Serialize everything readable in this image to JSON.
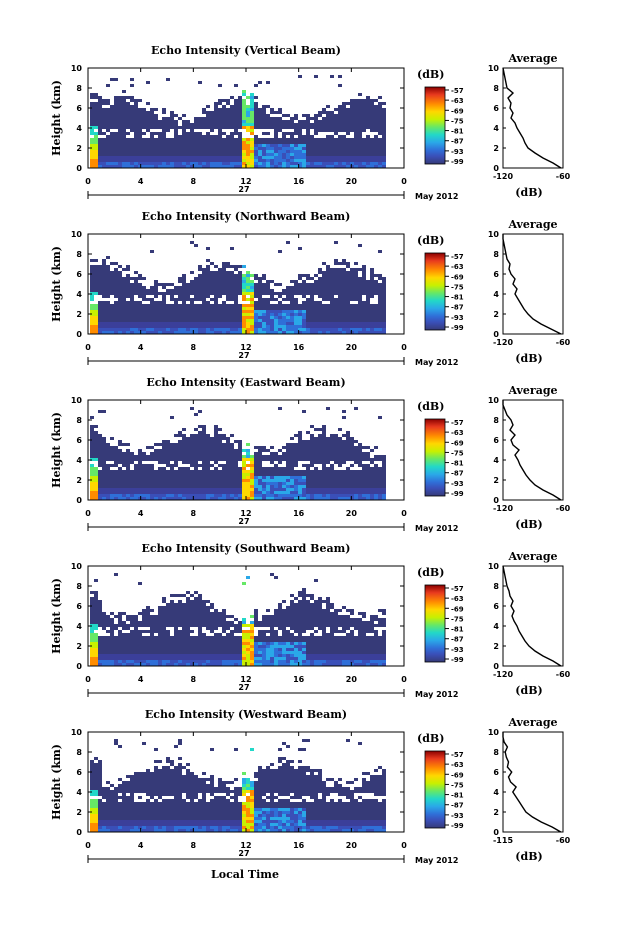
{
  "figure": {
    "xlabel": "Local Time",
    "date_label": "27",
    "month_label": "May 2012",
    "colorbar_unit": "(dB)",
    "colorbar_ticks": [
      "-57",
      "-63",
      "-69",
      "-75",
      "-81",
      "-87",
      "-93",
      "-99"
    ],
    "colorbar_colors": [
      "#8b0000",
      "#e83a1e",
      "#ff8c00",
      "#ffd700",
      "#c8f000",
      "#66e866",
      "#22d8c8",
      "#2aa8e8",
      "#2f6fd8",
      "#3a4fb8",
      "#3b3f9a",
      "#363a78"
    ],
    "avg_title": "Average",
    "avg_xlabel": "(dB)",
    "time_ticks": [
      "0",
      "4",
      "8",
      "12",
      "16",
      "20",
      "0"
    ],
    "height_ticks": [
      "0",
      "2",
      "4",
      "6",
      "8",
      "10"
    ],
    "ylabel": "Height (km)"
  },
  "chart_data": [
    {
      "type": "heatmap",
      "title": "Echo Intensity (Vertical Beam)",
      "xlabel": "",
      "ylabel": "Height (km)",
      "xlim": [
        0,
        24
      ],
      "ylim": [
        0,
        10
      ],
      "avg": {
        "title": "Average",
        "xlabel": "(dB)",
        "xticks": [
          "-120",
          "-60"
        ],
        "xlim": [
          -120,
          -60
        ],
        "profile": [
          [
            0,
            -62
          ],
          [
            0.5,
            -70
          ],
          [
            1,
            -80
          ],
          [
            1.5,
            -88
          ],
          [
            2,
            -95
          ],
          [
            2.5,
            -98
          ],
          [
            3,
            -100
          ],
          [
            3.5,
            -103
          ],
          [
            4,
            -106
          ],
          [
            4.5,
            -108
          ],
          [
            5,
            -112
          ],
          [
            5.5,
            -110
          ],
          [
            6,
            -113
          ],
          [
            6.5,
            -112
          ],
          [
            7,
            -115
          ],
          [
            7.5,
            -110
          ],
          [
            8,
            -116
          ],
          [
            8.5,
            -117
          ],
          [
            9,
            -118
          ],
          [
            9.5,
            -119
          ],
          [
            10,
            -120
          ]
        ]
      }
    },
    {
      "type": "heatmap",
      "title": "Echo Intensity (Northward Beam)",
      "xlabel": "",
      "ylabel": "Height (km)",
      "xlim": [
        0,
        24
      ],
      "ylim": [
        0,
        10
      ],
      "avg": {
        "title": "Average",
        "xlabel": "(dB)",
        "xticks": [
          "-120",
          "-60"
        ],
        "xlim": [
          -120,
          -60
        ],
        "profile": [
          [
            0,
            -62
          ],
          [
            0.5,
            -72
          ],
          [
            1,
            -82
          ],
          [
            1.5,
            -90
          ],
          [
            2,
            -95
          ],
          [
            2.5,
            -99
          ],
          [
            3,
            -102
          ],
          [
            3.5,
            -105
          ],
          [
            4,
            -108
          ],
          [
            4.5,
            -106
          ],
          [
            5,
            -110
          ],
          [
            5.5,
            -108
          ],
          [
            6,
            -112
          ],
          [
            6.5,
            -114
          ],
          [
            7,
            -113
          ],
          [
            7.5,
            -116
          ],
          [
            8,
            -117
          ],
          [
            8.5,
            -118
          ],
          [
            9,
            -119
          ],
          [
            9.5,
            -120
          ],
          [
            10,
            -120
          ]
        ]
      }
    },
    {
      "type": "heatmap",
      "title": "Echo Intensity (Eastward Beam)",
      "xlabel": "",
      "ylabel": "Height (km)",
      "xlim": [
        0,
        24
      ],
      "ylim": [
        0,
        10
      ],
      "avg": {
        "title": "Average",
        "xlabel": "(dB)",
        "xticks": [
          "-120",
          "-60"
        ],
        "xlim": [
          -120,
          -60
        ],
        "profile": [
          [
            0,
            -62
          ],
          [
            0.5,
            -70
          ],
          [
            1,
            -80
          ],
          [
            1.5,
            -88
          ],
          [
            2,
            -93
          ],
          [
            2.5,
            -97
          ],
          [
            3,
            -100
          ],
          [
            3.5,
            -103
          ],
          [
            4,
            -105
          ],
          [
            4.5,
            -108
          ],
          [
            5,
            -104
          ],
          [
            5.5,
            -110
          ],
          [
            6,
            -112
          ],
          [
            6.5,
            -108
          ],
          [
            7,
            -113
          ],
          [
            7.5,
            -110
          ],
          [
            8,
            -112
          ],
          [
            8.5,
            -116
          ],
          [
            9,
            -118
          ],
          [
            9.5,
            -120
          ],
          [
            10,
            -120
          ]
        ]
      }
    },
    {
      "type": "heatmap",
      "title": "Echo Intensity (Southward Beam)",
      "xlabel": "",
      "ylabel": "Height (km)",
      "xlim": [
        0,
        24
      ],
      "ylim": [
        0,
        10
      ],
      "avg": {
        "title": "Average",
        "xlabel": "(dB)",
        "xticks": [
          "-120",
          "-60"
        ],
        "xlim": [
          -120,
          -60
        ],
        "profile": [
          [
            0,
            -62
          ],
          [
            0.5,
            -70
          ],
          [
            1,
            -80
          ],
          [
            1.5,
            -88
          ],
          [
            2,
            -94
          ],
          [
            2.5,
            -98
          ],
          [
            3,
            -101
          ],
          [
            3.5,
            -104
          ],
          [
            4,
            -106
          ],
          [
            4.5,
            -109
          ],
          [
            5,
            -111
          ],
          [
            5.5,
            -109
          ],
          [
            6,
            -112
          ],
          [
            6.5,
            -110
          ],
          [
            7,
            -113
          ],
          [
            7.5,
            -114
          ],
          [
            8,
            -116
          ],
          [
            8.5,
            -117
          ],
          [
            9,
            -118
          ],
          [
            9.5,
            -119
          ],
          [
            10,
            -120
          ]
        ]
      }
    },
    {
      "type": "heatmap",
      "title": "Echo Intensity (Westward Beam)",
      "xlabel": "Local Time",
      "ylabel": "Height (km)",
      "xlim": [
        0,
        24
      ],
      "ylim": [
        0,
        10
      ],
      "avg": {
        "title": "Average",
        "xlabel": "(dB)",
        "xticks": [
          "-115",
          "-60"
        ],
        "xlim": [
          -115,
          -60
        ],
        "profile": [
          [
            0,
            -62
          ],
          [
            0.5,
            -70
          ],
          [
            1,
            -80
          ],
          [
            1.5,
            -88
          ],
          [
            2,
            -94
          ],
          [
            2.5,
            -97
          ],
          [
            3,
            -100
          ],
          [
            3.5,
            -103
          ],
          [
            4,
            -106
          ],
          [
            4.5,
            -103
          ],
          [
            5,
            -108
          ],
          [
            5.5,
            -110
          ],
          [
            6,
            -107
          ],
          [
            6.5,
            -111
          ],
          [
            7,
            -110
          ],
          [
            7.5,
            -112
          ],
          [
            8,
            -113
          ],
          [
            8.5,
            -111
          ],
          [
            9,
            -114
          ],
          [
            9.5,
            -115
          ],
          [
            10,
            -115
          ]
        ]
      }
    }
  ]
}
